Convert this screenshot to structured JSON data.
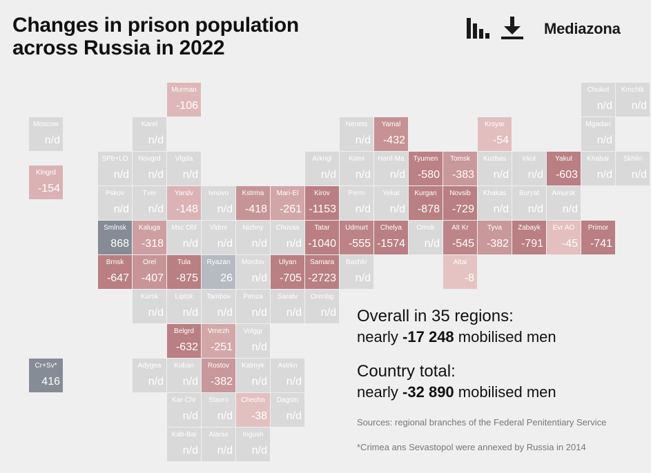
{
  "title": {
    "line1": "Changes in prison population",
    "line2": "across Russia in 2022"
  },
  "toolbar": {
    "chart_icon": "bar-chart-icon",
    "download_icon": "download-icon",
    "brand": "Mediazona"
  },
  "colors": {
    "background": "#efefef",
    "na": "#d9d9d9",
    "negative_light": "#e6c4c4",
    "negative_dark": "#b97f82",
    "positive_light": "#b9bdc4",
    "positive_dark": "#858c96"
  },
  "chart_data": {
    "type": "heatmap",
    "title": "Changes in prison population across Russia in 2022",
    "na_label": "n/d",
    "tiles": [
      {
        "abbr": "Murman",
        "col": 4,
        "row": 0,
        "value": -106
      },
      {
        "abbr": "Chukot",
        "col": 16,
        "row": 0,
        "value": null
      },
      {
        "abbr": "Kmchtk",
        "col": 17,
        "row": 0,
        "value": null
      },
      {
        "abbr": "Moscow",
        "col": 0,
        "row": 1,
        "value": null
      },
      {
        "abbr": "Karel",
        "col": 3,
        "row": 1,
        "value": null
      },
      {
        "abbr": "Nenets",
        "col": 9,
        "row": 1,
        "value": null
      },
      {
        "abbr": "Yamal",
        "col": 10,
        "row": 1,
        "value": -432
      },
      {
        "abbr": "Krsyar",
        "col": 13,
        "row": 1,
        "value": -54
      },
      {
        "abbr": "Mgadan",
        "col": 16,
        "row": 1,
        "value": null
      },
      {
        "abbr": "SPb+LO",
        "col": 2,
        "row": 2,
        "value": null
      },
      {
        "abbr": "Novgrd",
        "col": 3,
        "row": 2,
        "value": null
      },
      {
        "abbr": "Vlgda",
        "col": 4,
        "row": 2,
        "value": null
      },
      {
        "abbr": "Arkngl",
        "col": 8,
        "row": 2,
        "value": null
      },
      {
        "abbr": "Komi",
        "col": 9,
        "row": 2,
        "value": null
      },
      {
        "abbr": "Hant-Ma",
        "col": 10,
        "row": 2,
        "value": null
      },
      {
        "abbr": "Tyumen",
        "col": 11,
        "row": 2,
        "value": -580
      },
      {
        "abbr": "Tomsk",
        "col": 12,
        "row": 2,
        "value": -383
      },
      {
        "abbr": "Kuzbas",
        "col": 13,
        "row": 2,
        "value": null
      },
      {
        "abbr": "Irkut",
        "col": 14,
        "row": 2,
        "value": null
      },
      {
        "abbr": "Yakut",
        "col": 15,
        "row": 2,
        "value": -603
      },
      {
        "abbr": "Khabar",
        "col": 16,
        "row": 2,
        "value": null
      },
      {
        "abbr": "Skhlin",
        "col": 17,
        "row": 2,
        "value": null
      },
      {
        "abbr": "Klngrd",
        "col": 0,
        "row": 2.4,
        "value": -154
      },
      {
        "abbr": "Pskov",
        "col": 2,
        "row": 3,
        "value": null
      },
      {
        "abbr": "Tver",
        "col": 3,
        "row": 3,
        "value": null
      },
      {
        "abbr": "Yarslv",
        "col": 4,
        "row": 3,
        "value": -148
      },
      {
        "abbr": "Ivnovo",
        "col": 5,
        "row": 3,
        "value": null
      },
      {
        "abbr": "Kstrma",
        "col": 6,
        "row": 3,
        "value": -418
      },
      {
        "abbr": "Mari-El",
        "col": 7,
        "row": 3,
        "value": -261
      },
      {
        "abbr": "Kirov",
        "col": 8,
        "row": 3,
        "value": -1153
      },
      {
        "abbr": "Perm",
        "col": 9,
        "row": 3,
        "value": null
      },
      {
        "abbr": "Yekat",
        "col": 10,
        "row": 3,
        "value": null
      },
      {
        "abbr": "Kurgan",
        "col": 11,
        "row": 3,
        "value": -878
      },
      {
        "abbr": "Novsib",
        "col": 12,
        "row": 3,
        "value": -729
      },
      {
        "abbr": "Khakas",
        "col": 13,
        "row": 3,
        "value": null
      },
      {
        "abbr": "Buryat",
        "col": 14,
        "row": 3,
        "value": null
      },
      {
        "abbr": "Amursk",
        "col": 15,
        "row": 3,
        "value": null
      },
      {
        "abbr": "Smlnsk",
        "col": 2,
        "row": 4,
        "value": 868
      },
      {
        "abbr": "Kaluga",
        "col": 3,
        "row": 4,
        "value": -318
      },
      {
        "abbr": "Msc Obl",
        "col": 4,
        "row": 4,
        "value": null
      },
      {
        "abbr": "Vldmr",
        "col": 5,
        "row": 4,
        "value": null
      },
      {
        "abbr": "Nizhny",
        "col": 6,
        "row": 4,
        "value": null
      },
      {
        "abbr": "Chuvas",
        "col": 7,
        "row": 4,
        "value": null
      },
      {
        "abbr": "Tatar",
        "col": 8,
        "row": 4,
        "value": -1040
      },
      {
        "abbr": "Udmurt",
        "col": 9,
        "row": 4,
        "value": -555
      },
      {
        "abbr": "Chelya",
        "col": 10,
        "row": 4,
        "value": -1574
      },
      {
        "abbr": "Omsk",
        "col": 11,
        "row": 4,
        "value": null
      },
      {
        "abbr": "Alt Kr",
        "col": 12,
        "row": 4,
        "value": -545
      },
      {
        "abbr": "Tyva",
        "col": 13,
        "row": 4,
        "value": -382
      },
      {
        "abbr": "Zabayk",
        "col": 14,
        "row": 4,
        "value": -791
      },
      {
        "abbr": "Evr AO",
        "col": 15,
        "row": 4,
        "value": -45
      },
      {
        "abbr": "Primor",
        "col": 16,
        "row": 4,
        "value": -741
      },
      {
        "abbr": "Brnsk",
        "col": 2,
        "row": 5,
        "value": -647
      },
      {
        "abbr": "Orel",
        "col": 3,
        "row": 5,
        "value": -407
      },
      {
        "abbr": "Tula",
        "col": 4,
        "row": 5,
        "value": -875
      },
      {
        "abbr": "Ryazan",
        "col": 5,
        "row": 5,
        "value": 26
      },
      {
        "abbr": "Mordov",
        "col": 6,
        "row": 5,
        "value": null
      },
      {
        "abbr": "Ulyan",
        "col": 7,
        "row": 5,
        "value": -705
      },
      {
        "abbr": "Samara",
        "col": 8,
        "row": 5,
        "value": -2723
      },
      {
        "abbr": "Bashkr",
        "col": 9,
        "row": 5,
        "value": null
      },
      {
        "abbr": "Altai",
        "col": 12,
        "row": 5,
        "value": -8
      },
      {
        "abbr": "Kursk",
        "col": 3,
        "row": 6,
        "value": null
      },
      {
        "abbr": "Liptsk",
        "col": 4,
        "row": 6,
        "value": null
      },
      {
        "abbr": "Tambov",
        "col": 5,
        "row": 6,
        "value": null
      },
      {
        "abbr": "Penza",
        "col": 6,
        "row": 6,
        "value": null
      },
      {
        "abbr": "Saratv",
        "col": 7,
        "row": 6,
        "value": null
      },
      {
        "abbr": "Orenbg",
        "col": 8,
        "row": 6,
        "value": null
      },
      {
        "abbr": "Belgrd",
        "col": 4,
        "row": 7,
        "value": -632
      },
      {
        "abbr": "Vrnezh",
        "col": 5,
        "row": 7,
        "value": -251
      },
      {
        "abbr": "Volggr",
        "col": 6,
        "row": 7,
        "value": null
      },
      {
        "abbr": "Cr+Sv*",
        "col": 0,
        "row": 8,
        "value": 416
      },
      {
        "abbr": "Adygea",
        "col": 3,
        "row": 8,
        "value": null
      },
      {
        "abbr": "Kuban",
        "col": 4,
        "row": 8,
        "value": null
      },
      {
        "abbr": "Rostov",
        "col": 5,
        "row": 8,
        "value": -382
      },
      {
        "abbr": "Kalmyk",
        "col": 6,
        "row": 8,
        "value": null
      },
      {
        "abbr": "Astrkn",
        "col": 7,
        "row": 8,
        "value": null
      },
      {
        "abbr": "Kar-Chr",
        "col": 4,
        "row": 9,
        "value": null
      },
      {
        "abbr": "Stavro",
        "col": 5,
        "row": 9,
        "value": null
      },
      {
        "abbr": "Chechn",
        "col": 6,
        "row": 9,
        "value": -38
      },
      {
        "abbr": "Dagstn",
        "col": 7,
        "row": 9,
        "value": null
      },
      {
        "abbr": "Kab-Bal",
        "col": 4,
        "row": 10,
        "value": null
      },
      {
        "abbr": "Alania",
        "col": 5,
        "row": 10,
        "value": null
      },
      {
        "abbr": "Ingush",
        "col": 6,
        "row": 10,
        "value": null
      }
    ]
  },
  "summary": {
    "regions_line": "Overall in 35 regions:",
    "regions_prefix": "nearly ",
    "regions_value": "-17 248",
    "regions_suffix": " mobilised men",
    "country_line": "Country total:",
    "country_prefix": "nearly ",
    "country_value": "-32 890",
    "country_suffix": " mobilised men"
  },
  "sources": "Sources: regional branches of the Federal Penitentiary Service",
  "footnote": "*Crimea ans Sevastopol were annexed by Russia in 2014"
}
